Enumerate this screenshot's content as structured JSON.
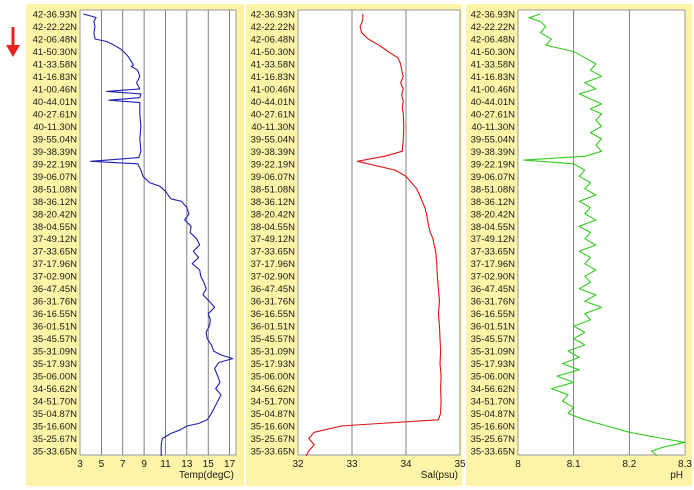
{
  "colors": {
    "panel_bg": "#fdf4a8",
    "plot_bg": "#ffffff",
    "grid": "#606060",
    "text": "#1a1a1a",
    "arrow": "#e8211e"
  },
  "chart_data": [
    {
      "type": "line",
      "xlabel": "Temp(degC)",
      "xlim": [
        3,
        17.6
      ],
      "xticks": [
        "3",
        "5",
        "7",
        "9",
        "11",
        "13",
        "15",
        "17"
      ],
      "grid": true,
      "y_tick_labels": [
        "42-36.93N",
        "42-22.22N",
        "42-06.48N",
        "41-50.30N",
        "41-33.58N",
        "41-16.83N",
        "41-00.46N",
        "40-44.01N",
        "40-27.61N",
        "40-11.30N",
        "39-55.04N",
        "39-38.39N",
        "39-22.19N",
        "39-06.07N",
        "38-51.08N",
        "38-36.12N",
        "38-20.42N",
        "38-04.55N",
        "37-49.12N",
        "37-33.65N",
        "37-17.96N",
        "37-02.90N",
        "36-47.45N",
        "36-31.76N",
        "36-16.55N",
        "36-01.51N",
        "35-45.57N",
        "35-31.09N",
        "35-17.93N",
        "35-06.00N",
        "34-56.62N",
        "34-51.70N",
        "35-04.87N",
        "35-16.60N",
        "35-25.67N",
        "35-33.65N"
      ],
      "series": [
        {
          "color": "#1f1fb4",
          "points": [
            [
              3.3,
              0
            ],
            [
              4.2,
              0.2
            ],
            [
              4.5,
              0.3
            ],
            [
              4.3,
              0.6
            ],
            [
              4.4,
              1
            ],
            [
              4.3,
              1.5
            ],
            [
              4.4,
              2
            ],
            [
              5.5,
              2.2
            ],
            [
              6.2,
              2.5
            ],
            [
              6.8,
              2.8
            ],
            [
              7.3,
              3.2
            ],
            [
              7.5,
              3.4
            ],
            [
              7.8,
              3.8
            ],
            [
              8,
              4.1
            ],
            [
              7.8,
              4.2
            ],
            [
              8.4,
              4.5
            ],
            [
              8.6,
              5
            ],
            [
              8.3,
              5.5
            ],
            [
              8.6,
              6
            ],
            [
              5.5,
              6.2
            ],
            [
              8.7,
              6.4
            ],
            [
              8.6,
              6.7
            ],
            [
              5.7,
              6.9
            ],
            [
              8.6,
              7.1
            ],
            [
              8.6,
              7.5
            ],
            [
              8.6,
              8
            ],
            [
              8.7,
              9
            ],
            [
              8.6,
              10
            ],
            [
              8.7,
              11
            ],
            [
              8.5,
              11.5
            ],
            [
              4,
              11.8
            ],
            [
              8.4,
              12
            ],
            [
              8.7,
              12.5
            ],
            [
              8.9,
              13
            ],
            [
              9.5,
              13.5
            ],
            [
              10.5,
              13.8
            ],
            [
              11,
              14.2
            ],
            [
              11.5,
              14.8
            ],
            [
              12.5,
              15
            ],
            [
              13,
              15.5
            ],
            [
              13.2,
              16
            ],
            [
              12.8,
              16.5
            ],
            [
              13.4,
              17
            ],
            [
              13.3,
              17.5
            ],
            [
              13.9,
              18
            ],
            [
              14.2,
              18.5
            ],
            [
              13.6,
              19
            ],
            [
              14.1,
              19.5
            ],
            [
              13.5,
              20
            ],
            [
              14.2,
              20.5
            ],
            [
              14.3,
              21
            ],
            [
              14.6,
              21.5
            ],
            [
              14.8,
              22
            ],
            [
              14.5,
              22.5
            ],
            [
              15.1,
              23
            ],
            [
              15.6,
              23.5
            ],
            [
              15,
              24
            ],
            [
              15.2,
              24.5
            ],
            [
              15.1,
              25
            ],
            [
              14.8,
              25.5
            ],
            [
              14.9,
              26
            ],
            [
              15.3,
              26.5
            ],
            [
              15.5,
              27
            ],
            [
              16.2,
              27.3
            ],
            [
              17.3,
              27.6
            ],
            [
              16,
              27.9
            ],
            [
              15.6,
              28.4
            ],
            [
              15.9,
              29
            ],
            [
              16.1,
              29.5
            ],
            [
              15.7,
              30
            ],
            [
              16.2,
              30.5
            ],
            [
              15.9,
              31
            ],
            [
              15.6,
              31.5
            ],
            [
              15.3,
              32
            ],
            [
              14.9,
              32.5
            ],
            [
              14.1,
              32.8
            ],
            [
              13,
              33
            ],
            [
              12.4,
              33.3
            ],
            [
              11.5,
              33.6
            ],
            [
              10.7,
              34
            ],
            [
              10.6,
              34.5
            ],
            [
              10.6,
              35
            ],
            [
              10.6,
              35.4
            ]
          ]
        }
      ]
    },
    {
      "type": "line",
      "xlabel": "Sal(psu)",
      "xlim": [
        32,
        35
      ],
      "xticks": [
        "32",
        "33",
        "34",
        "35"
      ],
      "grid": true,
      "y_tick_labels": [
        "42-36.93N",
        "42-22.22N",
        "42-06.48N",
        "41-50.30N",
        "41-33.58N",
        "41-16.83N",
        "41-00.46N",
        "40-44.01N",
        "40-27.61N",
        "40-11.30N",
        "39-55.04N",
        "39-38.39N",
        "39-22.19N",
        "39-06.07N",
        "38-51.08N",
        "38-36.12N",
        "38-20.42N",
        "38-04.55N",
        "37-49.12N",
        "37-33.65N",
        "37-17.96N",
        "37-02.90N",
        "36-47.45N",
        "36-31.76N",
        "36-16.55N",
        "36-01.51N",
        "35-45.57N",
        "35-31.09N",
        "35-17.93N",
        "35-06.00N",
        "34-56.62N",
        "34-51.70N",
        "35-04.87N",
        "35-16.60N",
        "35-25.67N",
        "35-33.65N"
      ],
      "series": [
        {
          "color": "#dd1111",
          "points": [
            [
              33.2,
              0
            ],
            [
              33.2,
              0.5
            ],
            [
              33.15,
              1
            ],
            [
              33.18,
              1.5
            ],
            [
              33.3,
              2
            ],
            [
              33.5,
              2.5
            ],
            [
              33.7,
              3.1
            ],
            [
              33.85,
              3.5
            ],
            [
              33.9,
              4
            ],
            [
              33.92,
              4.5
            ],
            [
              33.95,
              5
            ],
            [
              33.9,
              5.5
            ],
            [
              33.95,
              6
            ],
            [
              33.92,
              6.5
            ],
            [
              33.95,
              7
            ],
            [
              33.93,
              7.5
            ],
            [
              33.95,
              8
            ],
            [
              33.96,
              9
            ],
            [
              33.95,
              10
            ],
            [
              33.93,
              11
            ],
            [
              33.6,
              11.4
            ],
            [
              33.1,
              11.8
            ],
            [
              33.4,
              12.1
            ],
            [
              33.8,
              12.5
            ],
            [
              34,
              13
            ],
            [
              34.1,
              13.5
            ],
            [
              34.2,
              14
            ],
            [
              34.25,
              14.5
            ],
            [
              34.3,
              15
            ],
            [
              34.35,
              15.5
            ],
            [
              34.38,
              16
            ],
            [
              34.4,
              16.5
            ],
            [
              34.42,
              17
            ],
            [
              34.45,
              17.5
            ],
            [
              34.5,
              18
            ],
            [
              34.52,
              18.5
            ],
            [
              34.55,
              19
            ],
            [
              34.57,
              20
            ],
            [
              34.58,
              21
            ],
            [
              34.6,
              22
            ],
            [
              34.62,
              23
            ],
            [
              34.6,
              24
            ],
            [
              34.62,
              25
            ],
            [
              34.63,
              26
            ],
            [
              34.64,
              27
            ],
            [
              34.63,
              28
            ],
            [
              34.65,
              29
            ],
            [
              34.64,
              30
            ],
            [
              34.65,
              31
            ],
            [
              34.64,
              32
            ],
            [
              34.6,
              32.5
            ],
            [
              33.5,
              32.8
            ],
            [
              32.8,
              33
            ],
            [
              32.3,
              33.5
            ],
            [
              32.2,
              34
            ],
            [
              32.3,
              34.5
            ],
            [
              32.2,
              35
            ],
            [
              32.15,
              35.4
            ]
          ]
        }
      ]
    },
    {
      "type": "line",
      "xlabel": "pH",
      "xlim": [
        8,
        8.3
      ],
      "xticks": [
        "8",
        "8.1",
        "8.2",
        "8.3"
      ],
      "grid": true,
      "y_tick_labels": [
        "42-36.93N",
        "42-22.22N",
        "42-06.48N",
        "41-50.30N",
        "41-33.58N",
        "41-16.83N",
        "41-00.46N",
        "40-44.01N",
        "40-27.61N",
        "40-11.30N",
        "39-55.04N",
        "39-38.39N",
        "39-22.19N",
        "39-06.07N",
        "38-51.08N",
        "38-36.12N",
        "38-20.42N",
        "38-04.55N",
        "37-49.12N",
        "37-33.65N",
        "37-17.96N",
        "37-02.90N",
        "36-47.45N",
        "36-31.76N",
        "36-16.55N",
        "36-01.51N",
        "35-45.57N",
        "35-31.09N",
        "35-17.93N",
        "35-06.00N",
        "34-56.62N",
        "34-51.70N",
        "35-04.87N",
        "35-16.60N",
        "35-25.67N",
        "35-33.65N"
      ],
      "series": [
        {
          "color": "#33cc22",
          "points": [
            [
              8.04,
              0
            ],
            [
              8.02,
              0.3
            ],
            [
              8.04,
              0.6
            ],
            [
              8.05,
              1
            ],
            [
              8.04,
              1.5
            ],
            [
              8.06,
              2
            ],
            [
              8.05,
              2.5
            ],
            [
              8.1,
              3
            ],
            [
              8.12,
              3.5
            ],
            [
              8.14,
              4
            ],
            [
              8.13,
              4.5
            ],
            [
              8.15,
              5
            ],
            [
              8.12,
              5.5
            ],
            [
              8.14,
              6
            ],
            [
              8.11,
              6.4
            ],
            [
              8.13,
              6.8
            ],
            [
              8.15,
              7.2
            ],
            [
              8.13,
              7.6
            ],
            [
              8.15,
              8
            ],
            [
              8.14,
              8.5
            ],
            [
              8.15,
              9
            ],
            [
              8.13,
              9.5
            ],
            [
              8.15,
              10
            ],
            [
              8.14,
              10.5
            ],
            [
              8.15,
              11
            ],
            [
              8.12,
              11.4
            ],
            [
              8.01,
              11.7
            ],
            [
              8.1,
              12
            ],
            [
              8.12,
              12.5
            ],
            [
              8.11,
              13
            ],
            [
              8.13,
              13.5
            ],
            [
              8.12,
              14
            ],
            [
              8.14,
              14.5
            ],
            [
              8.11,
              15
            ],
            [
              8.13,
              15.5
            ],
            [
              8.12,
              16
            ],
            [
              8.14,
              16.5
            ],
            [
              8.11,
              17
            ],
            [
              8.13,
              17.5
            ],
            [
              8.12,
              18
            ],
            [
              8.14,
              18.5
            ],
            [
              8.11,
              19
            ],
            [
              8.13,
              19.5
            ],
            [
              8.12,
              20
            ],
            [
              8.14,
              20.5
            ],
            [
              8.12,
              21
            ],
            [
              8.13,
              21.5
            ],
            [
              8.11,
              22
            ],
            [
              8.14,
              22.5
            ],
            [
              8.12,
              23
            ],
            [
              8.15,
              23.5
            ],
            [
              8.12,
              24
            ],
            [
              8.13,
              24.5
            ],
            [
              8.1,
              25
            ],
            [
              8.12,
              25.5
            ],
            [
              8.1,
              26
            ],
            [
              8.12,
              26.5
            ],
            [
              8.09,
              27
            ],
            [
              8.11,
              27.5
            ],
            [
              8.08,
              28
            ],
            [
              8.11,
              28.5
            ],
            [
              8.07,
              29
            ],
            [
              8.1,
              29.5
            ],
            [
              8.06,
              30
            ],
            [
              8.09,
              30.5
            ],
            [
              8.08,
              31
            ],
            [
              8.1,
              31.5
            ],
            [
              8.09,
              32
            ],
            [
              8.12,
              32.5
            ],
            [
              8.16,
              33
            ],
            [
              8.2,
              33.5
            ],
            [
              8.26,
              34
            ],
            [
              8.3,
              34.3
            ],
            [
              8.26,
              34.7
            ],
            [
              8.24,
              35
            ],
            [
              8.25,
              35.4
            ]
          ]
        }
      ]
    }
  ]
}
